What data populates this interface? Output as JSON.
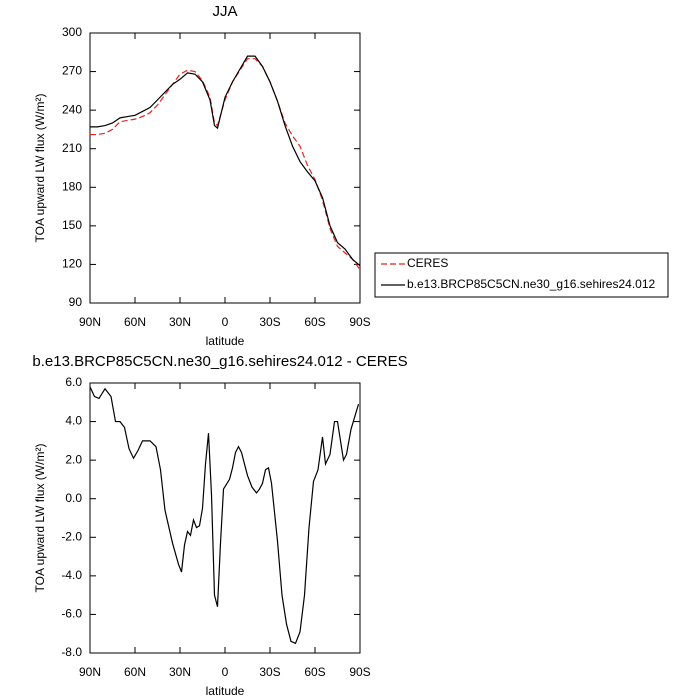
{
  "chart_data": [
    {
      "type": "line",
      "title": "JJA",
      "xlabel": "latitude",
      "ylabel": "TOA upward LW flux (W/m²)",
      "x": [
        90,
        85,
        80,
        75,
        70,
        65,
        60,
        55,
        50,
        45,
        40,
        35,
        30,
        25,
        20,
        15,
        10,
        7,
        5,
        0,
        -5,
        -10,
        -15,
        -20,
        -25,
        -30,
        -35,
        -40,
        -45,
        -50,
        -55,
        -60,
        -65,
        -70,
        -75,
        -80,
        -85,
        -90
      ],
      "series": [
        {
          "name": "CERES",
          "color": "#e8231f",
          "dashed": true,
          "values": [
            221,
            221,
            222,
            225,
            231,
            232,
            233,
            235,
            238,
            244,
            252,
            260,
            268,
            271,
            270,
            263,
            250,
            230,
            228,
            248,
            262,
            271,
            280,
            280,
            274,
            262,
            247,
            230,
            220,
            212,
            197,
            186,
            170,
            148,
            134,
            129,
            124,
            116
          ]
        },
        {
          "name": "b.e13.BRCP85C5CN.ne30_g16.sehires24.012",
          "color": "#000000",
          "dashed": false,
          "values": [
            227,
            227,
            228,
            230,
            234,
            235,
            236,
            239,
            242,
            248,
            254,
            260,
            264,
            269,
            268,
            262,
            248,
            228,
            226,
            250,
            262,
            272,
            282,
            282,
            274,
            262,
            247,
            228,
            212,
            200,
            192,
            185,
            172,
            150,
            137,
            132,
            124,
            119
          ]
        }
      ],
      "xlim": [
        90,
        -90
      ],
      "xticks": [
        {
          "value": 90,
          "label": "90N"
        },
        {
          "value": 60,
          "label": "60N"
        },
        {
          "value": 30,
          "label": "30N"
        },
        0,
        {
          "value": -30,
          "label": "30S"
        },
        {
          "value": -60,
          "label": "60S"
        },
        {
          "value": -90,
          "label": "90S"
        }
      ],
      "ylim": [
        90,
        300
      ],
      "yticks": [
        90,
        120,
        150,
        180,
        210,
        240,
        270,
        300
      ],
      "legend": "right"
    },
    {
      "type": "line",
      "title": "b.e13.BRCP85C5CN.ne30_g16.sehires24.012 - CERES",
      "xlabel": "latitude",
      "ylabel": "TOA upward LW flux (W/m²)",
      "x": [
        90,
        87,
        84,
        80,
        76,
        73,
        70,
        67,
        64,
        61,
        58,
        55,
        50,
        46,
        43,
        40,
        35,
        31,
        29,
        27,
        25,
        23,
        21,
        19,
        17,
        15,
        13,
        11,
        9,
        7,
        5,
        3,
        1,
        -3,
        -5,
        -7,
        -9,
        -11,
        -15,
        -18,
        -21,
        -23,
        -25,
        -27,
        -29,
        -31,
        -35,
        -38,
        -41,
        -44,
        -47,
        -50,
        -53,
        -56,
        -59,
        -62,
        -65,
        -67,
        -70,
        -73,
        -75,
        -79,
        -81,
        -84,
        -89
      ],
      "values": [
        5.8,
        5.3,
        5.2,
        5.7,
        5.3,
        4.0,
        4.0,
        3.7,
        2.6,
        2.1,
        2.5,
        3.0,
        3.0,
        2.7,
        1.5,
        -0.6,
        -2.3,
        -3.4,
        -3.8,
        -2.4,
        -1.7,
        -1.9,
        -1.1,
        -1.5,
        -1.4,
        -0.5,
        1.8,
        3.4,
        0.2,
        -5.0,
        -5.6,
        -2.3,
        0.5,
        1.0,
        1.6,
        2.4,
        2.7,
        2.4,
        1.2,
        0.6,
        0.3,
        0.5,
        0.8,
        1.5,
        1.6,
        0.8,
        -2.2,
        -5.0,
        -6.5,
        -7.4,
        -7.5,
        -6.9,
        -5.0,
        -1.5,
        0.9,
        1.5,
        3.2,
        1.8,
        2.3,
        4.0,
        4.0,
        2.0,
        2.3,
        3.6,
        4.9
      ],
      "color": "#000000",
      "xlim": [
        90,
        -90
      ],
      "xticks": [
        {
          "value": 90,
          "label": "90N"
        },
        {
          "value": 60,
          "label": "60N"
        },
        {
          "value": 30,
          "label": "30N"
        },
        0,
        {
          "value": -30,
          "label": "30S"
        },
        {
          "value": -60,
          "label": "60S"
        },
        {
          "value": -90,
          "label": "90S"
        }
      ],
      "ylim": [
        -8,
        6
      ],
      "yticks": [
        {
          "value": -8,
          "label": "-8.0"
        },
        {
          "value": -6,
          "label": "-6.0"
        },
        {
          "value": -4,
          "label": "-4.0"
        },
        {
          "value": -2,
          "label": "-2.0"
        },
        {
          "value": 0,
          "label": "0.0"
        },
        {
          "value": 2,
          "label": "2.0"
        },
        {
          "value": 4,
          "label": "4.0"
        },
        {
          "value": 6,
          "label": "6.0"
        }
      ]
    }
  ]
}
